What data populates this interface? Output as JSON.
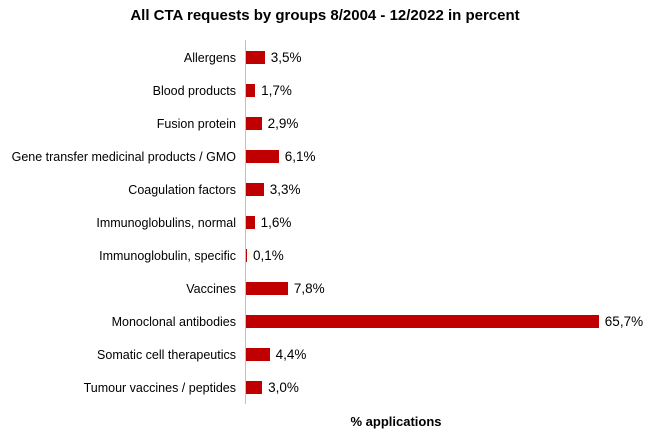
{
  "colors": {
    "bar": "#C00000",
    "axis_line": "#BFBFBF",
    "text": "#000000",
    "background": "#FFFFFF"
  },
  "chart_data": {
    "type": "bar",
    "orientation": "horizontal",
    "title": "All CTA requests by groups 8/2004 - 12/2022 in percent",
    "xlabel": "% applications",
    "ylabel": "",
    "categories": [
      "Allergens",
      "Blood products",
      "Fusion protein",
      "Gene transfer medicinal products / GMO",
      "Coagulation factors",
      "Immunoglobulins, normal",
      "Immunoglobulin, specific",
      "Vaccines",
      "Monoclonal antibodies",
      "Somatic cell therapeutics",
      "Tumour vaccines / peptides"
    ],
    "values": [
      3.5,
      1.7,
      2.9,
      6.1,
      3.3,
      1.6,
      0.1,
      7.8,
      65.7,
      4.4,
      3.0
    ],
    "value_labels": [
      "3,5%",
      "1,7%",
      "2,9%",
      "6,1%",
      "3,3%",
      "1,6%",
      "0,1%",
      "7,8%",
      "65,7%",
      "4,4%",
      "3,0%"
    ],
    "xlim": [
      0,
      70
    ],
    "grid": false,
    "legend": null,
    "bar_color": "#C00000",
    "data_labels_shown": true
  }
}
